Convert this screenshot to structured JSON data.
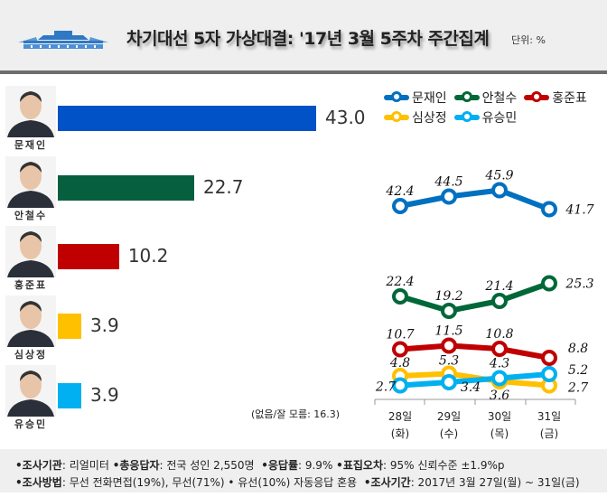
{
  "header": {
    "title": "차기대선 5자 가상대결: '17년 3월 5주차 주간집계",
    "unit": "단위: %"
  },
  "candidates": [
    {
      "name": "문재인",
      "value": 43.0,
      "display": "43.0",
      "color": "#0052c6"
    },
    {
      "name": "안철수",
      "value": 22.7,
      "display": "22.7",
      "color": "#066040"
    },
    {
      "name": "홍준표",
      "value": 10.2,
      "display": "10.2",
      "color": "#c00000"
    },
    {
      "name": "심상정",
      "value": 3.9,
      "display": "3.9",
      "color": "#ffc000"
    },
    {
      "name": "유승민",
      "value": 3.9,
      "display": "3.9",
      "color": "#00b0f0"
    }
  ],
  "note": "(없음/잘 모름: 16.3)",
  "chart_data": [
    {
      "type": "bar",
      "orientation": "horizontal",
      "categories": [
        "문재인",
        "안철수",
        "홍준표",
        "심상정",
        "유승민"
      ],
      "values": [
        43.0,
        22.7,
        10.2,
        3.9,
        3.9
      ],
      "xlim": [
        0,
        43
      ]
    },
    {
      "type": "line",
      "x": [
        "28일",
        "29일",
        "30일",
        "31일"
      ],
      "x_sub": [
        "(화)",
        "(수)",
        "(목)",
        "(금)"
      ],
      "legend": "top-right",
      "ylim": [
        0,
        50
      ],
      "series": [
        {
          "name": "문재인",
          "color": "#0070c0",
          "values": [
            42.4,
            44.5,
            45.9,
            41.7
          ],
          "labels": [
            "42.4",
            "44.5",
            "45.9",
            "41.7"
          ]
        },
        {
          "name": "안철수",
          "color": "#006838",
          "values": [
            22.4,
            19.2,
            21.4,
            25.3
          ],
          "labels": [
            "22.4",
            "19.2",
            "21.4",
            "25.3"
          ]
        },
        {
          "name": "홍준표",
          "color": "#c00000",
          "values": [
            10.7,
            11.5,
            10.8,
            8.8
          ],
          "labels": [
            "10.7",
            "11.5",
            "10.8",
            "8.8"
          ]
        },
        {
          "name": "심상정",
          "color": "#ffc000",
          "values": [
            4.8,
            5.3,
            3.6,
            2.7
          ],
          "labels": [
            "4.8",
            "5.3",
            "3.6",
            "2.7"
          ]
        },
        {
          "name": "유승민",
          "color": "#00b0f0",
          "values": [
            2.7,
            3.4,
            4.3,
            5.2
          ],
          "labels": [
            "2.7",
            "3.4",
            "4.3",
            "5.2"
          ]
        }
      ]
    }
  ],
  "footer": {
    "row1": [
      {
        "k": "•조사기관",
        "v": ": 리얼미터 "
      },
      {
        "k": "•총응답자",
        "v": ": 전국 성인 2,550명  "
      },
      {
        "k": "•응답률",
        "v": ": 9.9% "
      },
      {
        "k": "•표집오차",
        "v": ": 95% 신뢰수준 ±1.9%p"
      }
    ],
    "row2": [
      {
        "k": "•조사방법",
        "v": ": 무선 전화면접(19%), 무선(71%) • 유선(10%) 자동응답 혼용  "
      },
      {
        "k": "•조사기간",
        "v": ": 2017년 3월 27일(월) ~ 31일(금)"
      }
    ]
  }
}
